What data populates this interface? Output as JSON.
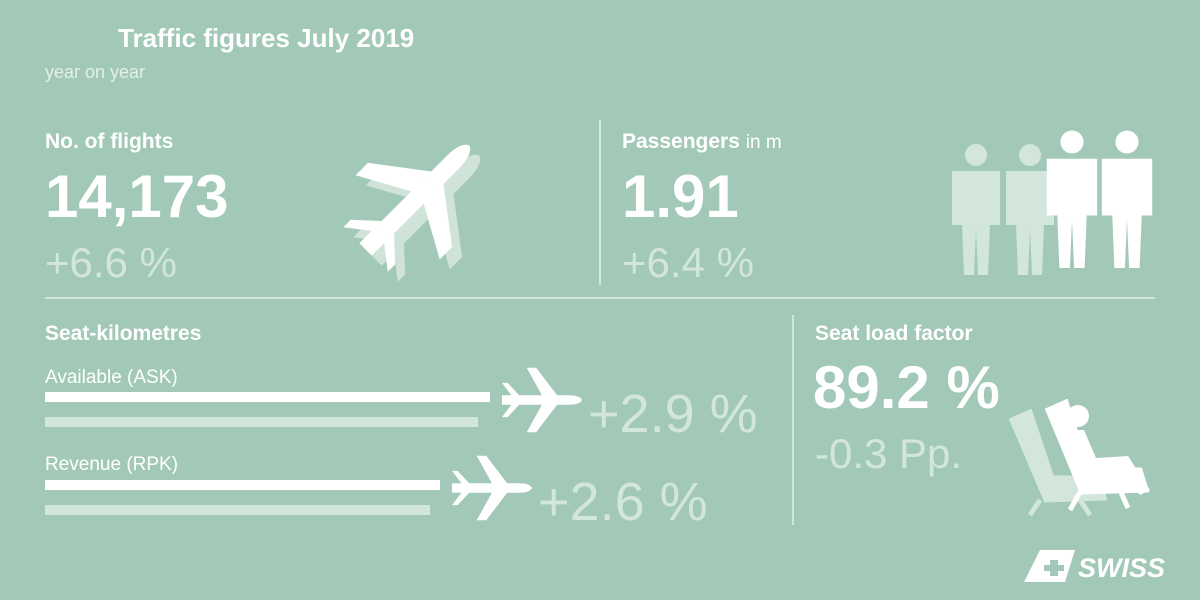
{
  "header": {
    "title": "Traffic figures July 2019",
    "subtitle": "year on year"
  },
  "flights": {
    "label": "No. of flights",
    "value": "14,173",
    "change": "+6.6 %"
  },
  "passengers": {
    "label": "Passengers",
    "unit": "in m",
    "value": "1.91",
    "change": "+6.4 %"
  },
  "seat_kilometres": {
    "label": "Seat-kilometres",
    "available": {
      "label": "Available (ASK)",
      "change": "+2.9 %"
    },
    "revenue": {
      "label": "Revenue (RPK)",
      "change": "+2.6 %"
    }
  },
  "seat_load_factor": {
    "label": "Seat load factor",
    "value": "89.2 %",
    "change": "-0.3 Pp."
  },
  "logo": "SWISS"
}
